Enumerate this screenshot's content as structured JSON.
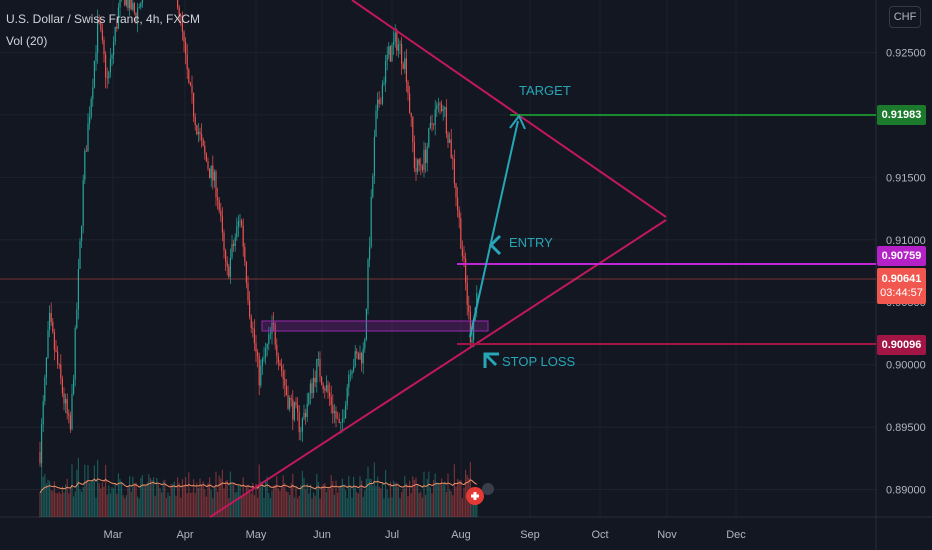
{
  "header": {
    "symbol_line": "U.S. Dollar / Swiss Franc, 4h, FXCM",
    "volume_label": "Vol (20)",
    "currency_button": "CHF"
  },
  "colors": {
    "background": "#131722",
    "up": "#26a69a",
    "down": "#ef5350",
    "triangle": "#c2185b",
    "target_line": "#1b8a2e",
    "entry_line": "#c026d3",
    "stop_line": "#a31545",
    "arrow": "#26a6b6",
    "current_price": "#f2574f"
  },
  "chart_data": {
    "type": "candlestick",
    "title": "U.S. Dollar / Swiss Franc, 4h, FXCM",
    "x_ticks": [
      "Mar",
      "Apr",
      "May",
      "Jun",
      "Jul",
      "Aug",
      "Sep",
      "Oct",
      "Nov",
      "Dec"
    ],
    "y_ticks": [
      "0.92500",
      "0.92000",
      "0.91500",
      "0.91000",
      "0.90500",
      "0.90000",
      "0.89500",
      "0.89000"
    ],
    "ylim": [
      0.8878,
      0.9292
    ],
    "close_path": [
      {
        "x": "2023-02-01",
        "y": 0.893
      },
      {
        "x": "2023-02-05",
        "y": 0.9035
      },
      {
        "x": "2023-02-10",
        "y": 0.8985
      },
      {
        "x": "2023-02-14",
        "y": 0.8945
      },
      {
        "x": "2023-02-20",
        "y": 0.916
      },
      {
        "x": "2023-02-26",
        "y": 0.9275
      },
      {
        "x": "2023-03-02",
        "y": 0.9225
      },
      {
        "x": "2023-03-08",
        "y": 0.93
      },
      {
        "x": "2023-03-14",
        "y": 0.928
      },
      {
        "x": "2023-03-22",
        "y": 0.932
      },
      {
        "x": "2023-03-31",
        "y": 0.931
      },
      {
        "x": "2023-04-06",
        "y": 0.922
      },
      {
        "x": "2023-04-12",
        "y": 0.917
      },
      {
        "x": "2023-04-18",
        "y": 0.914
      },
      {
        "x": "2023-04-22",
        "y": 0.907
      },
      {
        "x": "2023-04-28",
        "y": 0.912
      },
      {
        "x": "2023-05-02",
        "y": 0.9045
      },
      {
        "x": "2023-05-06",
        "y": 0.899
      },
      {
        "x": "2023-05-12",
        "y": 0.903
      },
      {
        "x": "2023-05-18",
        "y": 0.8975
      },
      {
        "x": "2023-05-24",
        "y": 0.895
      },
      {
        "x": "2023-05-31",
        "y": 0.9
      },
      {
        "x": "2023-06-06",
        "y": 0.897
      },
      {
        "x": "2023-06-10",
        "y": 0.8945
      },
      {
        "x": "2023-06-14",
        "y": 0.9
      },
      {
        "x": "2023-06-20",
        "y": 0.901
      },
      {
        "x": "2023-06-25",
        "y": 0.9195
      },
      {
        "x": "2023-06-30",
        "y": 0.9245
      },
      {
        "x": "2023-07-04",
        "y": 0.926
      },
      {
        "x": "2023-07-08",
        "y": 0.924
      },
      {
        "x": "2023-07-12",
        "y": 0.9155
      },
      {
        "x": "2023-07-16",
        "y": 0.9165
      },
      {
        "x": "2023-07-20",
        "y": 0.92
      },
      {
        "x": "2023-07-24",
        "y": 0.921
      },
      {
        "x": "2023-07-28",
        "y": 0.9165
      },
      {
        "x": "2023-08-01",
        "y": 0.9095
      },
      {
        "x": "2023-08-05",
        "y": 0.902
      },
      {
        "x": "2023-08-08",
        "y": 0.9064
      }
    ],
    "current_price": "0.90641",
    "countdown": "03:44:57",
    "levels": [
      {
        "label": "TARGET",
        "price": "0.91983"
      },
      {
        "label": "ENTRY",
        "price": "0.90759"
      },
      {
        "label": "STOP LOSS",
        "price": "0.90096"
      }
    ],
    "annotations": {
      "target": "TARGET",
      "entry": "ENTRY",
      "stop_loss": "STOP LOSS"
    },
    "volume_series": "Vol (20)"
  }
}
